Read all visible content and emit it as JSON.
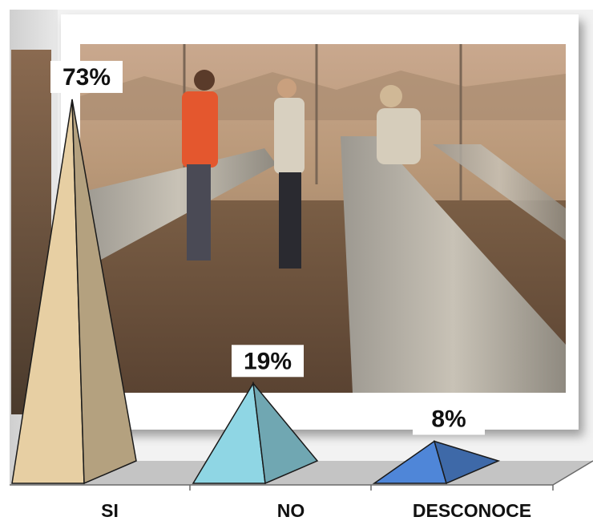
{
  "chart_data": {
    "type": "bar",
    "bar_shape": "pyramid-3d",
    "categories": [
      "SI",
      "NO",
      "DESCONOCE"
    ],
    "values": [
      73,
      19,
      8
    ],
    "data_labels": [
      "73%",
      "19%",
      "8%"
    ],
    "ylim": [
      0,
      80
    ],
    "grid": false,
    "legend": "none",
    "background": "photo of geologists inspecting drill core samples on tables in a shaded tent",
    "colors": {
      "SI": "#e7cfa3",
      "NO": "#8fd6e4",
      "DESCONOCE": "#4f86d8",
      "floor": "#c4c4c4",
      "wall": "#d8d8d8"
    }
  }
}
